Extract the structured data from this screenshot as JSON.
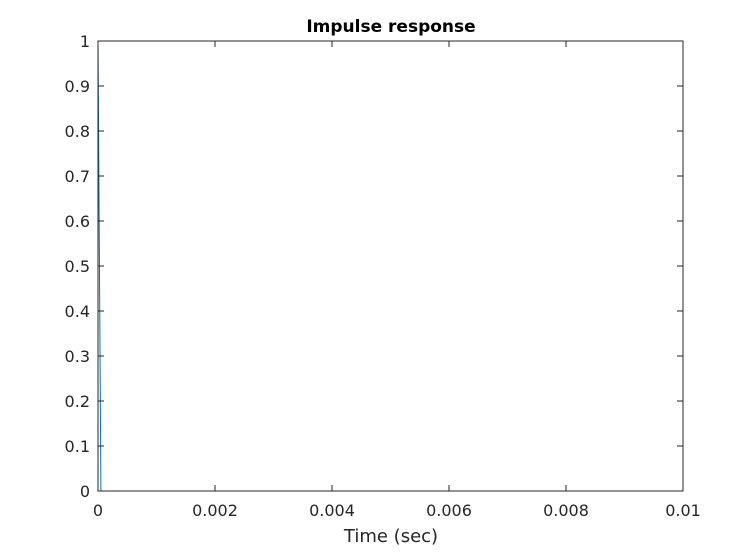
{
  "chart_data": {
    "type": "line",
    "title": "Impulse response",
    "xlabel": "Time (sec)",
    "ylabel": "",
    "xlim": [
      0,
      0.01
    ],
    "ylim": [
      0,
      1
    ],
    "grid": false,
    "xticks": [
      0,
      0.002,
      0.004,
      0.006,
      0.008,
      0.01
    ],
    "xtick_labels": [
      "0",
      "0.002",
      "0.004",
      "0.006",
      "0.008",
      "0.01"
    ],
    "yticks": [
      0,
      0.1,
      0.2,
      0.3,
      0.4,
      0.5,
      0.6,
      0.7,
      0.8,
      0.9,
      1
    ],
    "ytick_labels": [
      "0",
      "0.1",
      "0.2",
      "0.3",
      "0.4",
      "0.5",
      "0.6",
      "0.7",
      "0.8",
      "0.9",
      "1"
    ],
    "series": [
      {
        "color": "#0072BD",
        "x": [
          0,
          5e-05,
          0.0001,
          0.0094
        ],
        "y": [
          1,
          0,
          0,
          0
        ]
      }
    ]
  }
}
